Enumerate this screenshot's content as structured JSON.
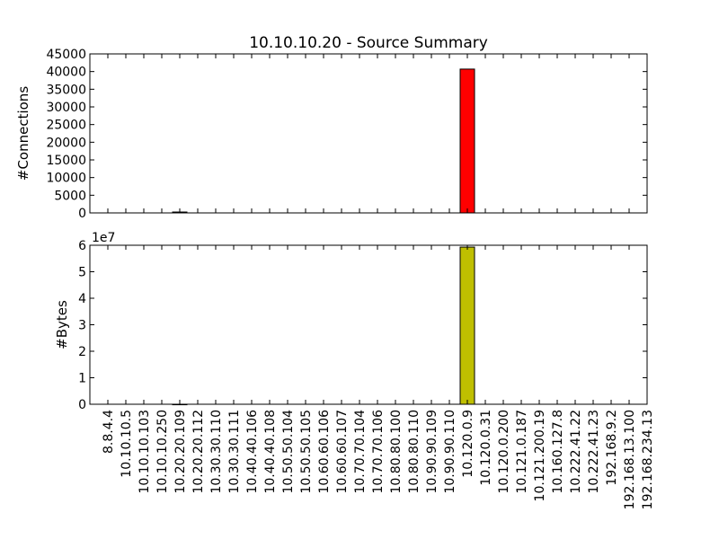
{
  "chart_data": [
    {
      "type": "bar",
      "title": "10.10.10.20 - Source Summary",
      "xlabel": "",
      "ylabel": "#Connections",
      "ylim": [
        0,
        45000
      ],
      "yticks": [
        "0",
        "5000",
        "10000",
        "15000",
        "20000",
        "25000",
        "30000",
        "35000",
        "40000",
        "45000"
      ],
      "bar_color": "#ff0000",
      "categories": [
        "8.8.4.4",
        "10.10.10.5",
        "10.10.10.103",
        "10.10.10.250",
        "10.20.20.109",
        "10.20.20.112",
        "10.30.30.110",
        "10.30.30.111",
        "10.40.40.106",
        "10.40.40.108",
        "10.50.50.104",
        "10.50.50.105",
        "10.60.60.106",
        "10.60.60.107",
        "10.70.70.104",
        "10.70.70.106",
        "10.80.80.100",
        "10.80.80.110",
        "10.90.90.109",
        "10.90.90.110",
        "10.120.0.9",
        "10.120.0.31",
        "10.120.0.200",
        "10.121.0.187",
        "10.121.200.19",
        "10.160.127.8",
        "10.222.41.22",
        "10.222.41.23",
        "192.168.9.2",
        "192.168.13.100",
        "192.168.234.13"
      ],
      "values": [
        0,
        0,
        0,
        0,
        250,
        0,
        0,
        0,
        0,
        0,
        0,
        0,
        0,
        0,
        0,
        0,
        0,
        0,
        0,
        0,
        40700,
        0,
        0,
        0,
        0,
        0,
        0,
        0,
        0,
        0,
        0
      ]
    },
    {
      "type": "bar",
      "title": "",
      "xlabel": "",
      "ylabel": "#Bytes",
      "ylim": [
        0,
        6
      ],
      "yticks": [
        "0",
        "1",
        "2",
        "3",
        "4",
        "5",
        "6"
      ],
      "scale_label": "1e7",
      "bar_color": "#bfbf00",
      "categories": [
        "8.8.4.4",
        "10.10.10.5",
        "10.10.10.103",
        "10.10.10.250",
        "10.20.20.109",
        "10.20.20.112",
        "10.30.30.110",
        "10.30.30.111",
        "10.40.40.106",
        "10.40.40.108",
        "10.50.50.104",
        "10.50.50.105",
        "10.60.60.106",
        "10.60.60.107",
        "10.70.70.104",
        "10.70.70.106",
        "10.80.80.100",
        "10.80.80.110",
        "10.90.90.109",
        "10.90.90.110",
        "10.120.0.9",
        "10.120.0.31",
        "10.120.0.200",
        "10.121.0.187",
        "10.121.200.19",
        "10.160.127.8",
        "10.222.41.22",
        "10.222.41.23",
        "192.168.9.2",
        "192.168.13.100",
        "192.168.234.13"
      ],
      "values": [
        0,
        0,
        0,
        0,
        0.001,
        0,
        0,
        0,
        0,
        0,
        0,
        0,
        0,
        0,
        0,
        0,
        0,
        0,
        0,
        0,
        5.93,
        0,
        0,
        0,
        0,
        0,
        0,
        0,
        0,
        0,
        0
      ]
    }
  ]
}
